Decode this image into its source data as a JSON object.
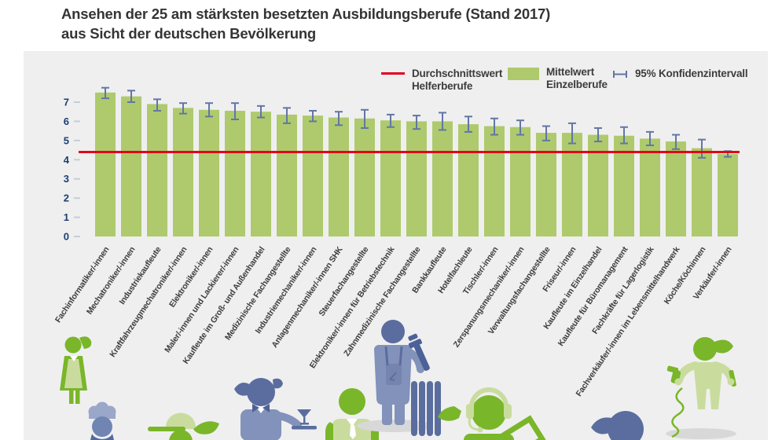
{
  "title": {
    "line1": "Ansehen der 25 am stärksten besetzten Ausbildungsberufe (Stand 2017)",
    "line2": "aus Sicht der deutschen Bevölkerung"
  },
  "legend": {
    "avg": {
      "line1": "Durchschnittswert",
      "line2": "Helferberufe"
    },
    "mean": {
      "line1": "Mittelwert",
      "line2": "Einzelberufe"
    },
    "ci": {
      "line1": "95% Konfidenzintervall"
    }
  },
  "colors": {
    "bar": "#aeca6d",
    "bar_light": "#c9dc9e",
    "figure_green": "#7ab629",
    "figure_green_light": "#c9dc9e",
    "figure_blue": "#5a6d9e",
    "figure_blue_light": "#8292ba",
    "reference_red": "#e2001a",
    "ci_blue": "#6276a5",
    "axis_navy": "#1c3f70",
    "tick": "#c7ccdb",
    "text_dark": "#3c3c3b",
    "panel_bg": "#efeff0",
    "shadow": "#d8d8d9"
  },
  "chart_data": {
    "type": "bar",
    "title": "Ansehen der 25 am stärksten besetzten Ausbildungsberufe (Stand 2017) aus Sicht der deutschen Bevölkerung",
    "categories": [
      "Fachinformatiker/-innen",
      "Mechatroniker/-innen",
      "Industriekaufleute",
      "Kraftfahrzeugmechatroniker/-innen",
      "Elektroniker/-innen",
      "Maler/-innen und Lackierer/-innen",
      "Kaufleute im Groß- und Außenhandel",
      "Medizinische Fachangestellte",
      "Industriemechaniker/-innen",
      "Anlagenmechaniker/-innen SHK",
      "Steuerfachangestellte",
      "Elektroniker/-innen für Betriebstechnik",
      "Zahnmedizinische Fachangestellte",
      "Bankkaufleute",
      "Hotelfachleute",
      "Tischler/-innen",
      "Zerspanungsmechaniker/-innen",
      "Verwaltungsfachangestellte",
      "Friseur/-innen",
      "Kaufleute im Einzelhandel",
      "Kaufleute für Büromanagement",
      "Fachkräfte für Lagerlogistik",
      "Fachverkäufer/-innen im Lebensmittelhandwerk",
      "Köche/Köchinnen",
      "Verkäufer/-innen"
    ],
    "values": [
      7.5,
      7.3,
      6.9,
      6.7,
      6.6,
      6.55,
      6.5,
      6.35,
      6.3,
      6.2,
      6.15,
      6.05,
      6.0,
      6.0,
      5.85,
      5.75,
      5.7,
      5.4,
      5.4,
      5.3,
      5.25,
      5.1,
      4.95,
      4.6,
      4.3
    ],
    "ci_low": [
      7.2,
      7.0,
      6.55,
      6.4,
      6.25,
      6.1,
      6.2,
      5.9,
      6.0,
      5.8,
      5.65,
      5.7,
      5.6,
      5.55,
      5.45,
      5.3,
      5.3,
      5.0,
      4.85,
      4.95,
      4.85,
      4.75,
      4.55,
      4.1,
      4.15
    ],
    "ci_high": [
      7.75,
      7.6,
      7.15,
      6.95,
      6.95,
      6.95,
      6.8,
      6.7,
      6.55,
      6.5,
      6.6,
      6.35,
      6.3,
      6.45,
      6.25,
      6.15,
      6.05,
      5.75,
      5.9,
      5.65,
      5.7,
      5.45,
      5.3,
      5.05,
      4.45
    ],
    "reference_line": {
      "label": "Durchschnittswert Helferberufe",
      "value": 4.4
    },
    "series_label": "Mittelwert Einzelberufe",
    "ci_label": "95% Konfidenzintervall",
    "ylim": [
      0,
      7
    ],
    "yticks": [
      0,
      1,
      2,
      3,
      4,
      5,
      6,
      7
    ],
    "xlabel": "",
    "ylabel": "",
    "grid": false,
    "legend_position": "top-right"
  },
  "decorative_figures": [
    "medical-assistant-figure",
    "cook-figure",
    "gardener-figure",
    "waitress-figure",
    "bank-clerk-figure",
    "plumber-figure",
    "call-center-agent-figure",
    "office-worker-figure",
    "hairdresser-figure"
  ]
}
